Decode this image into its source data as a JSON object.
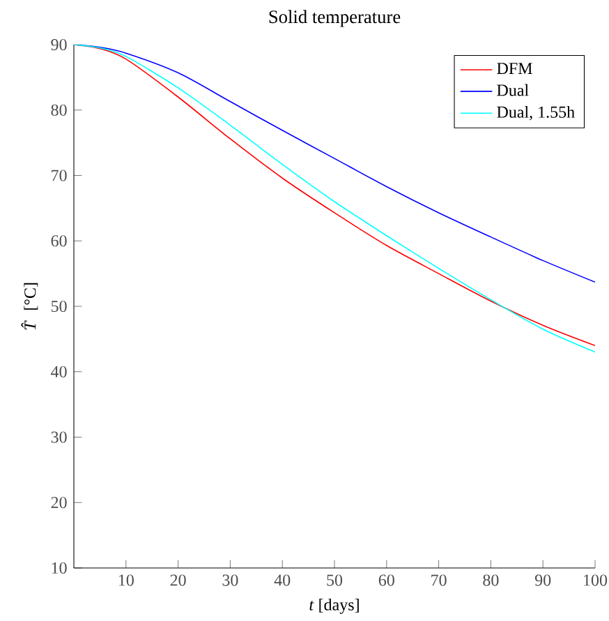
{
  "chart_data": {
    "type": "line",
    "title": "Solid temperature",
    "xlabel": "*t* [days]",
    "ylabel": "*T̂* [°C]",
    "x": [
      0,
      5,
      10,
      20,
      30,
      40,
      50,
      60,
      70,
      80,
      90,
      100
    ],
    "series": [
      {
        "name": "DFM",
        "color": "#ff0000",
        "values": [
          90,
          89.4,
          87.8,
          82,
          75.6,
          69.6,
          64.3,
          59.3,
          55.0,
          50.8,
          47.1,
          44.0
        ]
      },
      {
        "name": "Dual",
        "color": "#0000ff",
        "values": [
          90,
          89.6,
          88.7,
          85.7,
          81.3,
          76.9,
          72.6,
          68.3,
          64.3,
          60.6,
          57.0,
          53.7
        ]
      },
      {
        "name": "Dual, 1.55h",
        "color": "#00ffff",
        "values": [
          90,
          89.5,
          88.2,
          83.4,
          77.7,
          71.7,
          66.0,
          60.8,
          55.8,
          51.0,
          46.5,
          43.0
        ]
      }
    ],
    "xlim": [
      0,
      100
    ],
    "ylim": [
      10,
      90
    ],
    "xticks": [
      10,
      20,
      30,
      40,
      50,
      60,
      70,
      80,
      90,
      100
    ],
    "yticks": [
      10,
      20,
      30,
      40,
      50,
      60,
      70,
      80,
      90
    ],
    "grid": false,
    "legend": "top right",
    "marker": "none",
    "line_style": "solid"
  }
}
